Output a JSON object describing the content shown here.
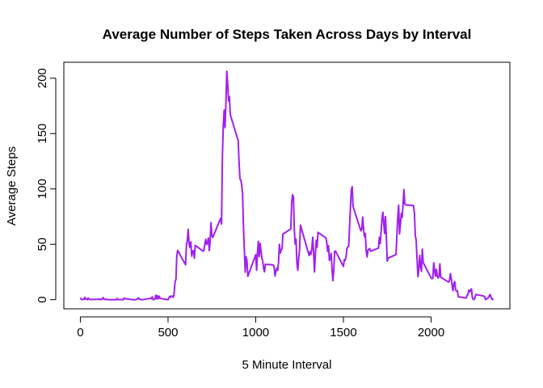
{
  "chart_data": {
    "type": "line",
    "title": "Average Number of Steps Taken Across Days by Interval",
    "x_label": "5 Minute Interval",
    "y_label": "Average Steps",
    "color": "#a020f0",
    "x": [
      0,
      5,
      10,
      15,
      20,
      25,
      30,
      35,
      40,
      45,
      50,
      55,
      100,
      105,
      110,
      115,
      120,
      125,
      130,
      135,
      140,
      145,
      150,
      155,
      200,
      205,
      210,
      215,
      220,
      225,
      230,
      235,
      240,
      245,
      250,
      255,
      300,
      305,
      310,
      315,
      320,
      325,
      330,
      335,
      340,
      345,
      350,
      355,
      400,
      405,
      410,
      415,
      420,
      425,
      430,
      435,
      440,
      445,
      450,
      455,
      500,
      505,
      510,
      515,
      520,
      525,
      530,
      535,
      540,
      545,
      550,
      555,
      600,
      605,
      610,
      615,
      620,
      625,
      630,
      635,
      640,
      645,
      650,
      655,
      700,
      705,
      710,
      715,
      720,
      725,
      730,
      735,
      740,
      745,
      750,
      755,
      800,
      805,
      810,
      815,
      820,
      825,
      830,
      835,
      840,
      845,
      850,
      855,
      900,
      905,
      910,
      915,
      920,
      925,
      930,
      935,
      940,
      945,
      950,
      955,
      1000,
      1005,
      1010,
      1015,
      1020,
      1025,
      1030,
      1035,
      1040,
      1045,
      1050,
      1055,
      1100,
      1105,
      1110,
      1115,
      1120,
      1125,
      1130,
      1135,
      1140,
      1145,
      1150,
      1155,
      1200,
      1205,
      1210,
      1215,
      1220,
      1225,
      1230,
      1235,
      1240,
      1245,
      1250,
      1255,
      1300,
      1305,
      1310,
      1315,
      1320,
      1325,
      1330,
      1335,
      1340,
      1345,
      1350,
      1355,
      1400,
      1405,
      1410,
      1415,
      1420,
      1425,
      1430,
      1435,
      1440,
      1445,
      1450,
      1455,
      1500,
      1505,
      1510,
      1515,
      1520,
      1525,
      1530,
      1535,
      1540,
      1545,
      1550,
      1555,
      1600,
      1605,
      1610,
      1615,
      1620,
      1625,
      1630,
      1635,
      1640,
      1645,
      1650,
      1655,
      1700,
      1705,
      1710,
      1715,
      1720,
      1725,
      1730,
      1735,
      1740,
      1745,
      1750,
      1755,
      1800,
      1805,
      1810,
      1815,
      1820,
      1825,
      1830,
      1835,
      1840,
      1845,
      1850,
      1855,
      1900,
      1905,
      1910,
      1915,
      1920,
      1925,
      1930,
      1935,
      1940,
      1945,
      1950,
      1955,
      2000,
      2005,
      2010,
      2015,
      2020,
      2025,
      2030,
      2035,
      2040,
      2045,
      2050,
      2055,
      2100,
      2105,
      2110,
      2115,
      2120,
      2125,
      2130,
      2135,
      2140,
      2145,
      2150,
      2155,
      2200,
      2205,
      2210,
      2215,
      2220,
      2225,
      2230,
      2235,
      2240,
      2245,
      2250,
      2255,
      2300,
      2305,
      2310,
      2315,
      2320,
      2325,
      2330,
      2335,
      2340,
      2345,
      2350,
      2355
    ],
    "values": [
      1.7,
      0.3,
      0.1,
      0.2,
      0.1,
      2.1,
      0.5,
      0.9,
      0,
      1.5,
      0.3,
      0.1,
      0.3,
      0.7,
      0.2,
      0.3,
      0,
      1.1,
      1.8,
      0.2,
      0.2,
      0.4,
      0.3,
      0,
      0,
      0,
      1.1,
      0,
      0,
      0.1,
      0,
      0.2,
      0,
      0,
      1.5,
      0.9,
      0,
      0,
      0,
      0,
      0.2,
      0.6,
      1.6,
      0.6,
      0.5,
      0.1,
      0,
      0,
      1.2,
      0.9,
      2.6,
      0,
      0.3,
      0.4,
      4.1,
      0.7,
      3.5,
      0.8,
      3.1,
      1.1,
      0,
      1.6,
      3,
      2.2,
      3.3,
      3,
      2.1,
      6.1,
      16,
      18.3,
      39.5,
      44.5,
      31.5,
      49.3,
      53.8,
      63.5,
      50,
      47.1,
      52.2,
      39.3,
      44,
      44.2,
      37.4,
      49,
      43.8,
      44.4,
      50.5,
      54.5,
      49.9,
      51,
      55.7,
      44.3,
      52.3,
      69.5,
      57.8,
      56.2,
      73.4,
      68.2,
      129.4,
      157.5,
      171.2,
      155.4,
      177.3,
      206.2,
      195.9,
      179.6,
      183.4,
      167,
      143.5,
      124,
      109.1,
      108.1,
      103.7,
      96,
      66.2,
      45.2,
      24.8,
      38.8,
      35,
      21.1,
      40.6,
      26.5,
      42.4,
      52.7,
      38.9,
      50.8,
      44.3,
      37.4,
      34.7,
      28.3,
      25.1,
      31.9,
      31.4,
      29.7,
      21.3,
      25.5,
      28.4,
      26.5,
      33.4,
      50,
      42,
      44.6,
      46,
      59.2,
      63.9,
      87.7,
      94.8,
      92.8,
      63.4,
      50.2,
      54.5,
      32.4,
      26.5,
      37.7,
      45.1,
      67.3,
      42.3,
      39.9,
      43.3,
      41,
      46.2,
      56.4,
      42.8,
      25.1,
      40,
      53.5,
      47.3,
      60.8,
      55.8,
      52,
      43.6,
      48.7,
      35.5,
      37.5,
      41.8,
      27.5,
      17.1,
      26.1,
      43.6,
      43.8,
      30,
      36.1,
      35.5,
      38.8,
      46,
      47.8,
      48.1,
      65.3,
      82.9,
      98.7,
      102.1,
      84,
      62.1,
      64.1,
      74.5,
      63.2,
      56.9,
      59.8,
      43.9,
      38.6,
      44.7,
      45.5,
      46.2,
      43.7,
      46.6,
      56.3,
      50.7,
      61.2,
      72.7,
      78.9,
      68.9,
      59.7,
      75.1,
      56.5,
      34.8,
      37.5,
      40.7,
      58,
      74.7,
      85.3,
      59.3,
      67.8,
      77.7,
      74.2,
      85.3,
      99.5,
      86.6,
      85.6,
      84.9,
      77.8,
      58,
      53.4,
      36.3,
      20.7,
      27.4,
      40,
      30.2,
      25.5,
      45.7,
      33.5,
      19.6,
      19,
      19.3,
      33.3,
      26.8,
      21.2,
      27.3,
      21.3,
      19.5,
      21.3,
      32.3,
      20.2,
      15.9,
      17.2,
      23.5,
      19.2,
      12.5,
      8,
      14.7,
      16.3,
      8.7,
      7.8,
      8.1,
      2.6,
      1.5,
      3.7,
      4.8,
      8.5,
      7.1,
      8.7,
      9.8,
      2.2,
      0.3,
      0.1,
      1.6,
      4.6,
      3.3,
      2.8,
      0,
      0.8,
      1,
      1.6,
      2.6,
      4.7,
      3.3,
      0.6,
      0.2,
      1.1
    ],
    "xlim": [
      -94.2,
      2449.2
    ],
    "ylim": [
      -8.25,
      214.42
    ],
    "xticks": [
      0,
      500,
      1000,
      1500,
      2000
    ],
    "yticks": [
      0,
      50,
      100,
      150,
      200
    ]
  }
}
